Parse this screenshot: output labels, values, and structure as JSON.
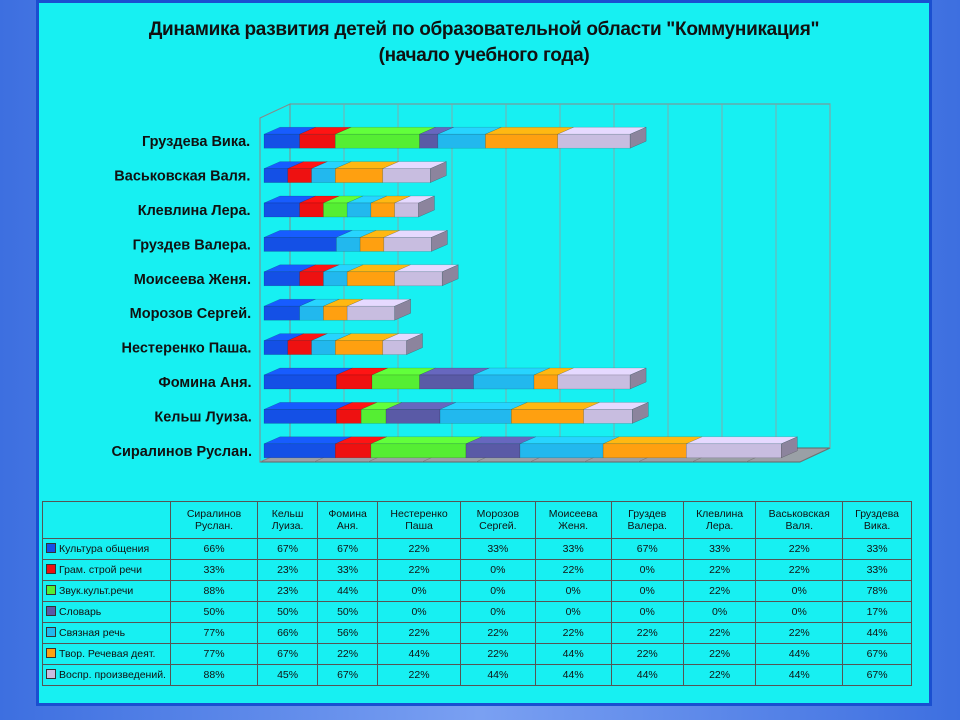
{
  "title_line1": "Динамика развития детей по образовательной области \"Коммуникация\"",
  "title_line2": "(начало учебного года)",
  "chart_data": {
    "type": "bar",
    "orientation": "horizontal-stacked",
    "title": "Динамика развития детей по образовательной области \"Коммуникация\" (начало учебного года)",
    "categories": [
      "Сиралинов Руслан.",
      "Кельш Луиза.",
      "Фомина Аня.",
      "Нестеренко Паша.",
      "Морозов Сергей.",
      "Моисеева Женя.",
      "Груздев Валера.",
      "Клевлина Лера.",
      "Васьковская Валя.",
      "Груздева  Вика."
    ],
    "table_headers": [
      "Сиралинов Руслан.",
      "Кельш Луиза.",
      "Фомина Аня.",
      "Нестеренко Паша",
      "Морозов Сергей.",
      "Моисеева Женя.",
      "Груздев Валера.",
      "Клевлина Лера.",
      "Васьковская Валя.",
      "Груздева Вика."
    ],
    "series": [
      {
        "name": "Культура общения",
        "color": "#1450e6",
        "values": [
          66,
          67,
          67,
          22,
          33,
          33,
          67,
          33,
          22,
          33
        ]
      },
      {
        "name": "Грам. строй речи",
        "color": "#ee1111",
        "values": [
          33,
          23,
          33,
          22,
          0,
          22,
          0,
          22,
          22,
          33
        ]
      },
      {
        "name": "Звук.культ.речи",
        "color": "#55ee33",
        "values": [
          88,
          23,
          44,
          0,
          0,
          0,
          0,
          22,
          0,
          78
        ]
      },
      {
        "name": "Словарь",
        "color": "#5a5aa6",
        "values": [
          50,
          50,
          50,
          0,
          0,
          0,
          0,
          0,
          0,
          17
        ]
      },
      {
        "name": "Связная речь",
        "color": "#22b8ee",
        "values": [
          77,
          66,
          56,
          22,
          22,
          22,
          22,
          22,
          22,
          44
        ]
      },
      {
        "name": "Твор. Речевая деят.",
        "color": "#ffa010",
        "values": [
          77,
          67,
          22,
          44,
          22,
          44,
          22,
          22,
          44,
          67
        ]
      },
      {
        "name": "Воспр. произведений.",
        "color": "#c8bde0",
        "values": [
          88,
          45,
          67,
          22,
          44,
          44,
          44,
          22,
          44,
          67
        ]
      }
    ],
    "value_format": "percent",
    "grid": true,
    "legend": "data-table-below"
  }
}
